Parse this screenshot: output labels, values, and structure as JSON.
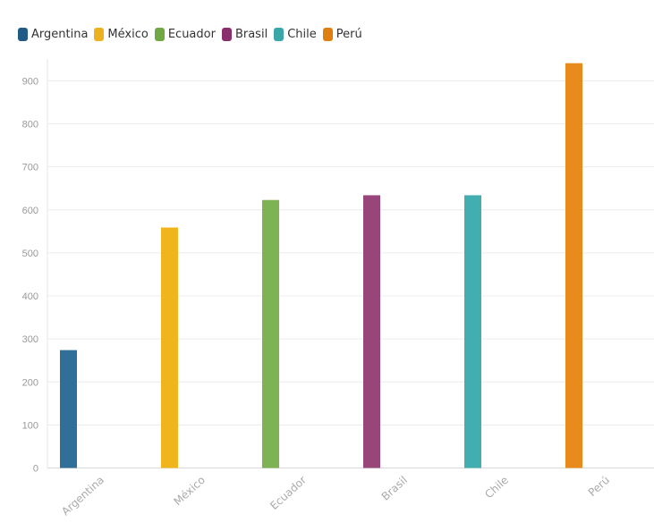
{
  "chart_data": {
    "type": "bar",
    "title": "",
    "xlabel": "",
    "ylabel": "",
    "categories": [
      "Argentina",
      "México",
      "Ecuador",
      "Brasil",
      "Chile",
      "Perú"
    ],
    "values": [
      274,
      559,
      623,
      634,
      634,
      941
    ],
    "colors": [
      "#2f6f99",
      "#f0b41c",
      "#7db352",
      "#98467a",
      "#42aeaf",
      "#e88b1c"
    ],
    "ylim": [
      0,
      950
    ],
    "yticks": [
      0,
      100,
      200,
      300,
      400,
      500,
      600,
      700,
      800,
      900
    ],
    "grid": true,
    "legend": {
      "position": "top-left",
      "items": [
        {
          "label": "Argentina",
          "color": "#1f5b85"
        },
        {
          "label": "México",
          "color": "#ebb11f"
        },
        {
          "label": "Ecuador",
          "color": "#6fa845"
        },
        {
          "label": "Brasil",
          "color": "#8a2f6b"
        },
        {
          "label": "Chile",
          "color": "#3aa6a8"
        },
        {
          "label": "Perú",
          "color": "#df7f11"
        }
      ]
    }
  }
}
